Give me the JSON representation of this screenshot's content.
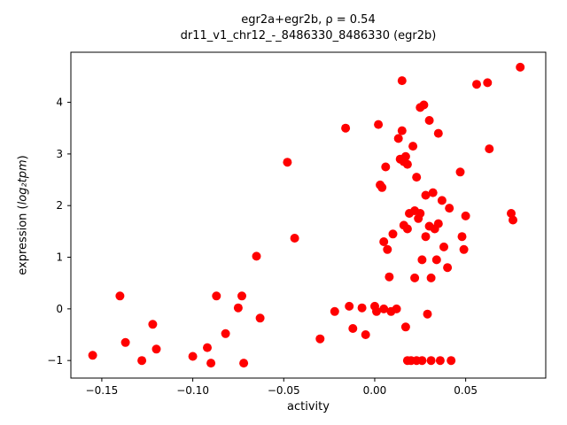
{
  "figure": {
    "title_line1": "egr2a+egr2b, ρ = 0.54",
    "title_line2": "dr11_v1_chr12_-_8486330_8486330 (egr2b)",
    "xlabel": "activity",
    "ylabel_prefix": "expression (",
    "ylabel_math": "log₂tpm",
    "ylabel_suffix": ")"
  },
  "chart_data": {
    "type": "scatter",
    "title": "egr2a+egr2b, ρ = 0.54",
    "subtitle": "dr11_v1_chr12_-_8486330_8486330 (egr2b)",
    "xlabel": "activity",
    "ylabel": "expression (log2 tpm)",
    "legend": "none",
    "grid": false,
    "marker_color": "#ff0000",
    "marker_radius": 5,
    "xlim": [
      -0.167,
      0.094
    ],
    "ylim": [
      -1.34,
      4.97
    ],
    "xticks": {
      "values": [
        -0.15,
        -0.1,
        -0.05,
        0.0,
        0.05
      ],
      "labels": [
        "−0.15",
        "−0.10",
        "−0.05",
        "0.00",
        "0.05"
      ]
    },
    "yticks": {
      "values": [
        -1,
        0,
        1,
        2,
        3,
        4
      ],
      "labels": [
        "−1",
        "0",
        "1",
        "2",
        "3",
        "4"
      ]
    },
    "points": [
      [
        -0.155,
        -0.9
      ],
      [
        -0.14,
        0.25
      ],
      [
        -0.137,
        -0.65
      ],
      [
        -0.128,
        -1.0
      ],
      [
        -0.122,
        -0.3
      ],
      [
        -0.12,
        -0.78
      ],
      [
        -0.1,
        -0.92
      ],
      [
        -0.092,
        -0.75
      ],
      [
        -0.09,
        -1.05
      ],
      [
        -0.087,
        0.25
      ],
      [
        -0.082,
        -0.48
      ],
      [
        -0.075,
        0.02
      ],
      [
        -0.073,
        0.25
      ],
      [
        -0.072,
        -1.05
      ],
      [
        -0.065,
        1.02
      ],
      [
        -0.063,
        -0.18
      ],
      [
        -0.048,
        2.84
      ],
      [
        -0.044,
        1.37
      ],
      [
        -0.03,
        -0.58
      ],
      [
        -0.022,
        -0.05
      ],
      [
        -0.016,
        3.5
      ],
      [
        -0.014,
        0.05
      ],
      [
        -0.012,
        -0.38
      ],
      [
        -0.007,
        0.02
      ],
      [
        -0.005,
        -0.5
      ],
      [
        0.0,
        0.05
      ],
      [
        0.001,
        -0.05
      ],
      [
        0.002,
        3.57
      ],
      [
        0.003,
        2.4
      ],
      [
        0.004,
        2.35
      ],
      [
        0.005,
        1.3
      ],
      [
        0.005,
        0.0
      ],
      [
        0.006,
        2.75
      ],
      [
        0.007,
        1.15
      ],
      [
        0.008,
        0.62
      ],
      [
        0.009,
        -0.05
      ],
      [
        0.01,
        1.45
      ],
      [
        0.012,
        0.0
      ],
      [
        0.013,
        3.3
      ],
      [
        0.014,
        2.9
      ],
      [
        0.015,
        4.42
      ],
      [
        0.015,
        3.45
      ],
      [
        0.016,
        2.85
      ],
      [
        0.016,
        1.62
      ],
      [
        0.017,
        2.95
      ],
      [
        0.017,
        -0.35
      ],
      [
        0.018,
        2.8
      ],
      [
        0.018,
        1.55
      ],
      [
        0.018,
        -1.0
      ],
      [
        0.019,
        1.85
      ],
      [
        0.02,
        -1.0
      ],
      [
        0.021,
        3.15
      ],
      [
        0.022,
        1.9
      ],
      [
        0.022,
        0.6
      ],
      [
        0.023,
        2.55
      ],
      [
        0.023,
        -1.0
      ],
      [
        0.024,
        1.75
      ],
      [
        0.025,
        3.9
      ],
      [
        0.025,
        1.85
      ],
      [
        0.026,
        0.95
      ],
      [
        0.026,
        -1.0
      ],
      [
        0.027,
        3.95
      ],
      [
        0.028,
        2.2
      ],
      [
        0.028,
        1.4
      ],
      [
        0.029,
        -0.1
      ],
      [
        0.03,
        3.65
      ],
      [
        0.03,
        1.6
      ],
      [
        0.031,
        0.6
      ],
      [
        0.031,
        -1.0
      ],
      [
        0.032,
        2.25
      ],
      [
        0.033,
        1.55
      ],
      [
        0.034,
        0.95
      ],
      [
        0.035,
        3.4
      ],
      [
        0.035,
        1.65
      ],
      [
        0.036,
        -1.0
      ],
      [
        0.037,
        2.1
      ],
      [
        0.038,
        1.2
      ],
      [
        0.04,
        0.8
      ],
      [
        0.041,
        1.95
      ],
      [
        0.042,
        -1.0
      ],
      [
        0.047,
        2.65
      ],
      [
        0.048,
        1.4
      ],
      [
        0.049,
        1.15
      ],
      [
        0.05,
        1.8
      ],
      [
        0.056,
        4.35
      ],
      [
        0.062,
        4.38
      ],
      [
        0.063,
        3.1
      ],
      [
        0.075,
        1.85
      ],
      [
        0.076,
        1.72
      ],
      [
        0.08,
        4.68
      ]
    ]
  }
}
